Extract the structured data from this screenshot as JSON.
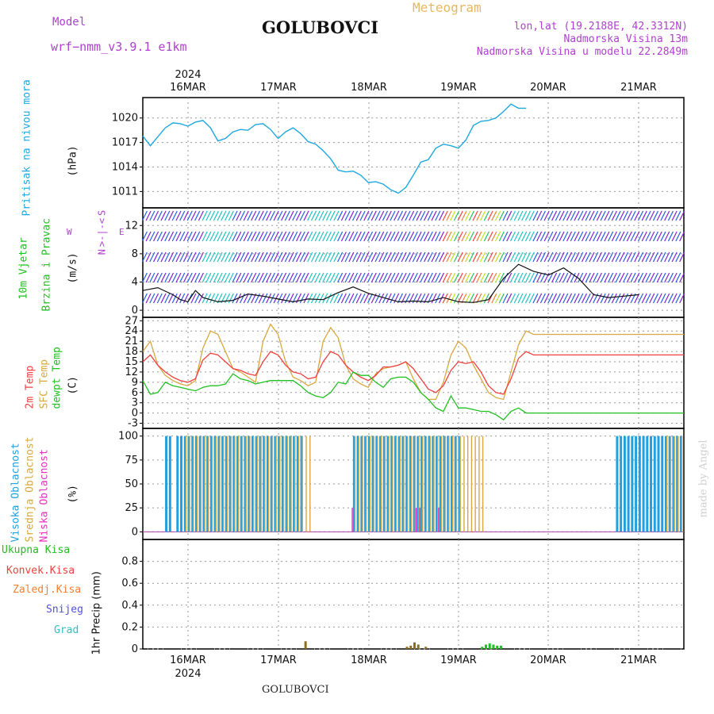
{
  "header": {
    "model_label": "Model",
    "model_name": "wrf−nmm_v3.9.1 e1km",
    "title": "Meteogram",
    "station": "GOLUBOVCI",
    "coords": "lon,lat (19.2188E, 42.3312N)",
    "elevation": "Nadmorska Visina 13m",
    "model_elevation": "Nadmorska Visina u modelu 22.2849m",
    "year": "2024",
    "footer_station": "GOLUBOVCI",
    "credit": "made by Angel"
  },
  "colors": {
    "pressure": "#1ea8e0",
    "wind_label": "#20c020",
    "temp2m": "#f04040",
    "sfc": "#d8a840",
    "dew": "#20c020",
    "high_cloud": "#20a0e0",
    "mid_cloud": "#d8a840",
    "low_cloud": "#e030c0",
    "total_precip": "#20c020",
    "conv_precip": "#f04040",
    "frozen_precip": "#f08030",
    "snow": "#5050e0",
    "hail": "#30c0c0",
    "grid": "#999999",
    "credit": "#d0d0d0"
  },
  "chart_data": [
    {
      "type": "line",
      "ylabel": [
        "Pritisak na nivou mora",
        "(hPa)"
      ],
      "ylim": [
        1009,
        1022.5
      ],
      "yticks": [
        1011,
        1014,
        1017,
        1020
      ],
      "x_day_labels": [
        "16MAR",
        "17MAR",
        "18MAR",
        "19MAR",
        "20MAR",
        "21MAR"
      ],
      "x": [
        0,
        2,
        4,
        6,
        8,
        10,
        12,
        14,
        16,
        18,
        20,
        22,
        24,
        26,
        28,
        30,
        32,
        34,
        36,
        38,
        40,
        42,
        44,
        46,
        48,
        50,
        52,
        54,
        56,
        58,
        60,
        62,
        64,
        66,
        68,
        70,
        72,
        74,
        76,
        78,
        80,
        82,
        84,
        86,
        88,
        90,
        92,
        94,
        96,
        98,
        100,
        102,
        104,
        106,
        108,
        110,
        112,
        114,
        116,
        118,
        120,
        122,
        124,
        126,
        128,
        130,
        132,
        134,
        136,
        138,
        140,
        142,
        144
      ],
      "series": [
        {
          "values": [
            1017.8,
            1016.6,
            1017.7,
            1018.8,
            1019.4,
            1019.3,
            1019.0,
            1019.5,
            1019.7,
            1018.8,
            1017.2,
            1017.5,
            1018.3,
            1018.6,
            1018.5,
            1019.2,
            1019.3,
            1018.6,
            1017.5,
            1018.3,
            1018.8,
            1018.1,
            1017.1,
            1016.8,
            1016.0,
            1015.0,
            1013.6,
            1013.4,
            1013.5,
            1013.0,
            1012.1,
            1012.2,
            1011.9,
            1011.2,
            1010.8,
            1011.5,
            1013.0,
            1014.6,
            1014.9,
            1016.3,
            1016.8,
            1016.6,
            1016.3,
            1017.3,
            1019.1,
            1019.6,
            1019.7,
            1020.0,
            1020.8,
            1021.7,
            1021.2,
            1021.2,
            1021.0,
            1021.0,
            1021.0,
            1021.0,
            1021.0,
            1021.0,
            1021.0,
            1021.0,
            1021.0,
            1021.0,
            1021.0,
            1021.0,
            1021.0,
            1021.0,
            1021.0,
            1021.0,
            1021.0,
            1021.0,
            1021.0,
            1021.0,
            1021.0
          ]
        }
      ],
      "x_units": "hours from 16MAR 00UTC (approx)"
    },
    {
      "type": "line",
      "ylabel": [
        "10m Vjetar",
        "Brzina i Pravac",
        "(m/s)"
      ],
      "ylim": [
        -1,
        14.5
      ],
      "yticks": [
        0,
        4,
        8,
        12
      ],
      "series": [
        {
          "name": "speed",
          "x": [
            0,
            4,
            8,
            10,
            12,
            14,
            16,
            20,
            24,
            28,
            32,
            36,
            40,
            44,
            48,
            52,
            56,
            60,
            64,
            68,
            72,
            76,
            80,
            84,
            88,
            92,
            96,
            100,
            104,
            108,
            112,
            116,
            120,
            124,
            128,
            132
          ],
          "values": [
            2.8,
            3.2,
            2.2,
            1.5,
            1.2,
            2.8,
            1.8,
            1.2,
            1.4,
            2.3,
            2.0,
            1.6,
            1.2,
            1.6,
            1.5,
            2.5,
            3.3,
            2.4,
            1.8,
            1.2,
            1.3,
            1.2,
            1.8,
            1.2,
            1.1,
            1.5,
            4.5,
            6.5,
            5.5,
            5.0,
            6.0,
            4.5,
            2.2,
            1.8,
            2.0,
            2.2
          ]
        }
      ],
      "direction_legend": [
        "W",
        "E",
        "N",
        "S"
      ]
    },
    {
      "type": "line",
      "ylabel": [
        "2m Temp",
        "SFC Temp",
        "dewpt Temp",
        "(C)"
      ],
      "ylim": [
        -4.5,
        28
      ],
      "yticks": [
        -3,
        0,
        3,
        6,
        9,
        12,
        15,
        18,
        21,
        24,
        27
      ],
      "x": [
        0,
        2,
        4,
        6,
        8,
        10,
        12,
        14,
        16,
        18,
        20,
        22,
        24,
        26,
        28,
        30,
        32,
        34,
        36,
        38,
        40,
        42,
        44,
        46,
        48,
        50,
        52,
        54,
        56,
        58,
        60,
        62,
        64,
        66,
        68,
        70,
        72,
        74,
        76,
        78,
        80,
        82,
        84,
        86,
        88,
        90,
        92,
        94,
        96,
        98,
        100,
        102,
        104,
        106,
        108,
        110,
        112,
        114,
        116,
        118,
        120,
        122,
        124,
        126,
        128,
        130,
        132,
        134,
        136,
        138,
        140,
        142,
        144
      ],
      "series": [
        {
          "name": "2m Temp",
          "values": [
            15,
            17,
            14,
            12,
            10.5,
            9.5,
            9,
            10,
            15.5,
            17.5,
            17,
            15,
            13,
            12.5,
            11.5,
            11,
            15,
            18,
            17,
            14,
            12,
            11.5,
            10,
            10.5,
            15,
            18,
            17,
            14,
            12,
            10.5,
            9.5,
            11,
            13.5,
            13.5,
            14,
            15,
            13,
            10,
            7,
            6,
            8,
            12.5,
            15,
            14.5,
            15,
            12,
            8,
            6,
            5.5,
            10,
            16,
            18,
            17,
            17,
            17,
            17,
            17,
            17,
            17,
            17,
            17,
            17,
            17,
            17,
            17,
            17,
            17,
            17,
            17,
            17,
            17,
            17,
            17
          ]
        },
        {
          "name": "SFC Temp",
          "values": [
            18,
            21,
            14,
            11,
            9.5,
            8.5,
            8,
            9.5,
            19,
            24,
            23,
            18,
            13,
            12,
            10.5,
            9,
            21,
            26,
            23,
            15,
            10.5,
            9.5,
            8,
            9,
            21,
            25,
            22,
            14,
            10,
            8.5,
            7.5,
            11.5,
            13,
            13.5,
            14,
            15,
            10,
            6,
            4,
            4,
            9,
            17,
            21,
            19,
            14,
            10,
            6,
            4.5,
            4,
            12,
            20,
            24,
            23,
            23,
            23,
            23,
            23,
            23,
            23,
            23,
            23,
            23,
            23,
            23,
            23,
            23,
            23,
            23,
            23,
            23,
            23,
            23,
            23
          ]
        },
        {
          "name": "dewpt Temp",
          "values": [
            9.5,
            5.5,
            6,
            9,
            8,
            7.5,
            7,
            6.5,
            7.5,
            8,
            8,
            8.5,
            11.5,
            10,
            9.5,
            8.5,
            9,
            9.5,
            9.5,
            9.5,
            9.5,
            8,
            6,
            5,
            4.5,
            6,
            9,
            8.5,
            12,
            11,
            11,
            9,
            7.5,
            10,
            10.5,
            10.5,
            9,
            6,
            4,
            1.5,
            0.5,
            5,
            1.5,
            1.5,
            1,
            0.5,
            0.5,
            -0.5,
            -2,
            0.5,
            1.5,
            0,
            0,
            0,
            0,
            0,
            0,
            0,
            0,
            0,
            0,
            0,
            0,
            0,
            0,
            0,
            0,
            0,
            0,
            0,
            0,
            0,
            0
          ]
        }
      ]
    },
    {
      "type": "bar",
      "ylabel": [
        "Visoka Oblacnost",
        "Srednja Oblacnost",
        "Niska Oblacnost",
        "(%)"
      ],
      "ylim": [
        -8,
        108
      ],
      "yticks": [
        0,
        25,
        50,
        75,
        100
      ],
      "series": [
        {
          "name": "Visoka Oblacnost",
          "hours": [
            6,
            7,
            9,
            10,
            11,
            12,
            13,
            14,
            15,
            16,
            17,
            18,
            19,
            20,
            21,
            22,
            23,
            24,
            25,
            26,
            27,
            28,
            29,
            30,
            31,
            32,
            33,
            34,
            35,
            36,
            37,
            38,
            39,
            40,
            41,
            42,
            56,
            57,
            58,
            59,
            60,
            61,
            62,
            63,
            64,
            65,
            66,
            67,
            68,
            69,
            70,
            71,
            72,
            73,
            74,
            75,
            76,
            77,
            78,
            79,
            80,
            81,
            82,
            83,
            84,
            126,
            127,
            128,
            129,
            130,
            131,
            132,
            133,
            134,
            135,
            136,
            137,
            138,
            139,
            140,
            141,
            142,
            143
          ],
          "value": 100
        },
        {
          "name": "Srednja Oblacnost",
          "hours": [
            11,
            12,
            13,
            14,
            15,
            16,
            17,
            18,
            19,
            20,
            21,
            22,
            23,
            24,
            25,
            26,
            27,
            28,
            29,
            30,
            31,
            32,
            33,
            34,
            35,
            36,
            37,
            38,
            39,
            40,
            41,
            42,
            43,
            44,
            56,
            57,
            58,
            59,
            60,
            61,
            62,
            63,
            64,
            65,
            66,
            67,
            68,
            69,
            70,
            71,
            72,
            73,
            74,
            75,
            76,
            77,
            78,
            79,
            80,
            81,
            82,
            83,
            84,
            85,
            86,
            87,
            88,
            89,
            90,
            139,
            140,
            141,
            142,
            143
          ],
          "value": 100
        },
        {
          "name": "Niska Oblacnost",
          "hours": [
            55,
            72,
            73,
            78
          ],
          "value": 25
        }
      ]
    },
    {
      "type": "bar",
      "ylabel": [
        "1hr Precip (mm)"
      ],
      "ylim": [
        0,
        1.0
      ],
      "yticks": [
        0,
        0.2,
        0.4,
        0.6,
        0.8
      ],
      "series_labels": [
        "Ukupna Kisa",
        "Konvek.Kisa",
        "Zaledj.Kisa",
        "Snijeg",
        "Grad"
      ],
      "bars": [
        {
          "hour": 43,
          "value": 0.07,
          "kind": "conv"
        },
        {
          "hour": 70,
          "value": 0.02,
          "kind": "conv"
        },
        {
          "hour": 71,
          "value": 0.03,
          "kind": "conv"
        },
        {
          "hour": 72,
          "value": 0.06,
          "kind": "conv"
        },
        {
          "hour": 73,
          "value": 0.04,
          "kind": "conv"
        },
        {
          "hour": 75,
          "value": 0.02,
          "kind": "conv"
        },
        {
          "hour": 90,
          "value": 0.02,
          "kind": "total"
        },
        {
          "hour": 91,
          "value": 0.04,
          "kind": "total"
        },
        {
          "hour": 92,
          "value": 0.05,
          "kind": "total"
        },
        {
          "hour": 93,
          "value": 0.04,
          "kind": "total"
        },
        {
          "hour": 94,
          "value": 0.03,
          "kind": "total"
        },
        {
          "hour": 95,
          "value": 0.03,
          "kind": "total"
        }
      ]
    }
  ]
}
